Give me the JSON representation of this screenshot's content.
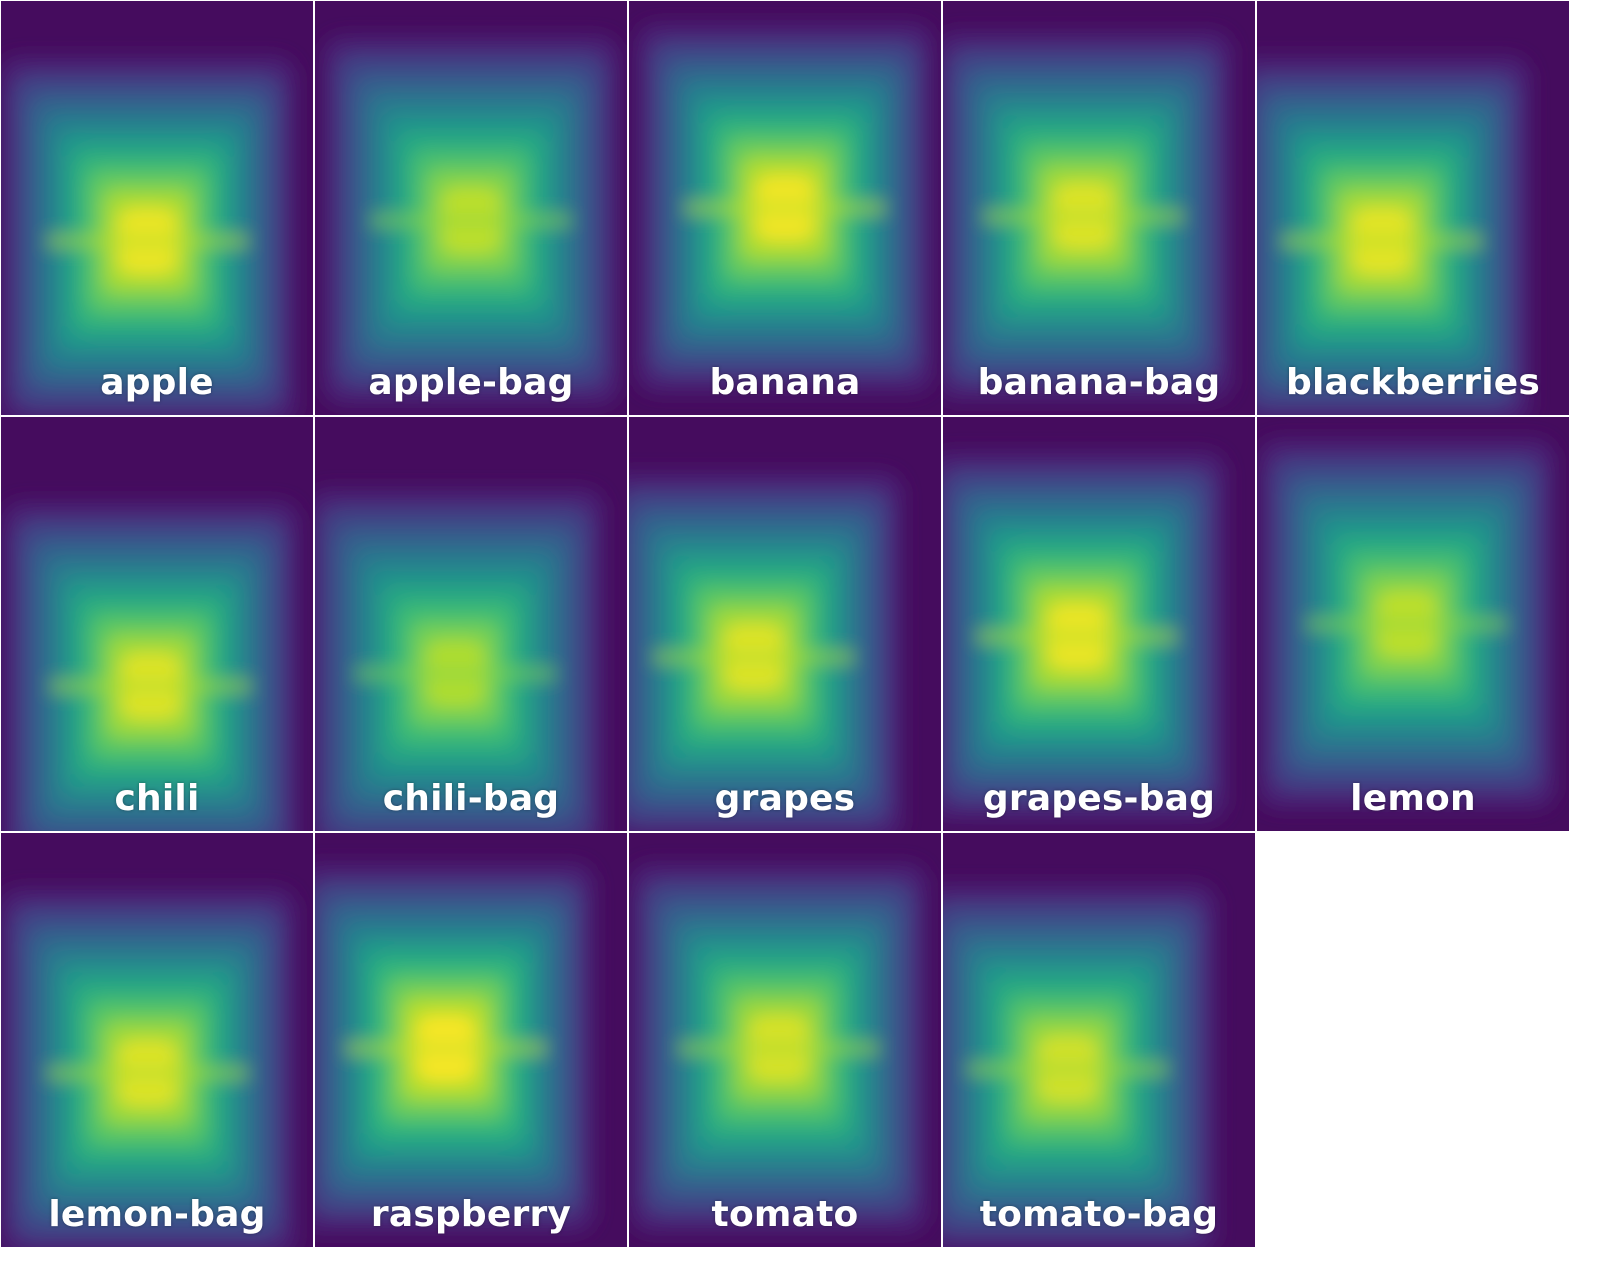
{
  "colormap": {
    "name": "viridis",
    "stops": [
      "#440154",
      "#482878",
      "#3e4989",
      "#31688e",
      "#26828e",
      "#1f9e89",
      "#35b779",
      "#6ece58",
      "#b5de2b",
      "#fde725"
    ]
  },
  "tiles": [
    {
      "label": "apple",
      "peak_x": 0.47,
      "peak_y": 0.58,
      "intensity": 0.97
    },
    {
      "label": "apple-bag",
      "peak_x": 0.5,
      "peak_y": 0.53,
      "intensity": 0.9
    },
    {
      "label": "banana",
      "peak_x": 0.5,
      "peak_y": 0.5,
      "intensity": 0.98
    },
    {
      "label": "banana-bag",
      "peak_x": 0.45,
      "peak_y": 0.52,
      "intensity": 0.95
    },
    {
      "label": "blackberries",
      "peak_x": 0.4,
      "peak_y": 0.58,
      "intensity": 0.96
    },
    {
      "label": "chili",
      "peak_x": 0.48,
      "peak_y": 0.65,
      "intensity": 0.95
    },
    {
      "label": "chili-bag",
      "peak_x": 0.45,
      "peak_y": 0.62,
      "intensity": 0.88
    },
    {
      "label": "grapes",
      "peak_x": 0.4,
      "peak_y": 0.58,
      "intensity": 0.95
    },
    {
      "label": "grapes-bag",
      "peak_x": 0.43,
      "peak_y": 0.53,
      "intensity": 0.97
    },
    {
      "label": "lemon",
      "peak_x": 0.48,
      "peak_y": 0.5,
      "intensity": 0.9
    },
    {
      "label": "lemon-bag",
      "peak_x": 0.47,
      "peak_y": 0.58,
      "intensity": 0.95
    },
    {
      "label": "raspberry",
      "peak_x": 0.42,
      "peak_y": 0.52,
      "intensity": 0.99
    },
    {
      "label": "tomato",
      "peak_x": 0.48,
      "peak_y": 0.52,
      "intensity": 0.94
    },
    {
      "label": "tomato-bag",
      "peak_x": 0.4,
      "peak_y": 0.57,
      "intensity": 0.93
    }
  ]
}
